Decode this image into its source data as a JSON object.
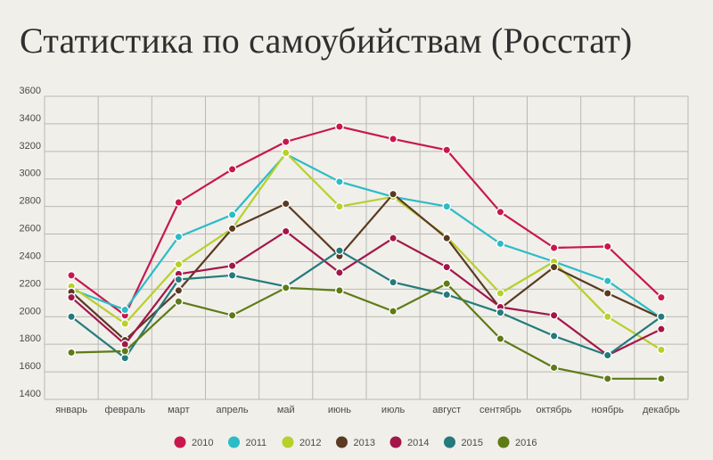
{
  "chart_data": {
    "type": "line",
    "title": "Статистика по самоубийствам (Росстат)",
    "xlabel": "",
    "ylabel": "",
    "categories": [
      "январь",
      "февраль",
      "март",
      "апрель",
      "май",
      "июнь",
      "июль",
      "август",
      "сентябрь",
      "октябрь",
      "ноябрь",
      "декабрь"
    ],
    "y_ticks": [
      1400,
      1600,
      1800,
      2000,
      2200,
      2400,
      2600,
      2800,
      3000,
      3200,
      3400,
      3600
    ],
    "ylim": [
      1400,
      3600
    ],
    "grid": true,
    "legend_position": "bottom",
    "series": [
      {
        "name": "2010",
        "color": "#c8174f",
        "values": [
          2300,
          2010,
          2830,
          3070,
          3270,
          3380,
          3290,
          3210,
          2760,
          2500,
          2510,
          2140
        ]
      },
      {
        "name": "2011",
        "color": "#2bbcc6",
        "values": [
          2200,
          2050,
          2580,
          2740,
          3180,
          2980,
          2870,
          2800,
          2530,
          2400,
          2260,
          1990
        ]
      },
      {
        "name": "2012",
        "color": "#b9cf2a",
        "values": [
          2220,
          1950,
          2380,
          2640,
          3190,
          2800,
          2870,
          2580,
          2170,
          2400,
          2000,
          1760
        ]
      },
      {
        "name": "2013",
        "color": "#5b3a21",
        "values": [
          2180,
          1830,
          2190,
          2640,
          2820,
          2440,
          2890,
          2570,
          2060,
          2360,
          2170,
          1990
        ]
      },
      {
        "name": "2014",
        "color": "#a3164a",
        "values": [
          2140,
          1800,
          2310,
          2370,
          2620,
          2320,
          2570,
          2360,
          2070,
          2010,
          1720,
          1910
        ]
      },
      {
        "name": "2015",
        "color": "#247a7c",
        "values": [
          2000,
          1700,
          2270,
          2300,
          2220,
          2480,
          2250,
          2160,
          2030,
          1860,
          1720,
          2000
        ]
      },
      {
        "name": "2016",
        "color": "#5e7b16",
        "values": [
          1740,
          1750,
          2110,
          2010,
          2210,
          2190,
          2040,
          2240,
          1840,
          1630,
          1550,
          1550
        ]
      }
    ]
  }
}
